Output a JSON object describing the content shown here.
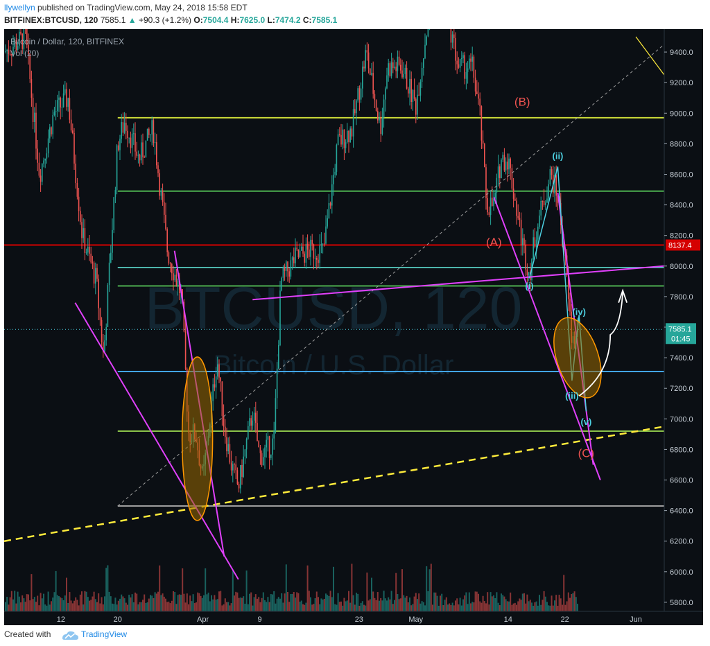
{
  "header": {
    "username": "llywellyn",
    "published_text": "published on TradingView.com, May 24, 2018 15:58 EDT",
    "symbol": "BITFINEX:BTCUSD, 120",
    "last": "7585.1",
    "change_arrow": "▲",
    "change": "+90.3 (+1.2%)",
    "open_label": "O:",
    "open": "7504.4",
    "high_label": "H:",
    "high": "7625.0",
    "low_label": "L:",
    "low": "7474.2",
    "close_label": "C:",
    "close": "7585.1"
  },
  "legend": {
    "title": "Bitcoin / Dollar, 120, BITFINEX",
    "vol": "Vol (20)"
  },
  "watermark": {
    "symbol": "BTCUSD, 120",
    "name": "Bitcoin / U.S. Dollar"
  },
  "footer": {
    "created_with": "Created with",
    "brand": "TradingView"
  },
  "colors": {
    "background": "#0b0f14",
    "up_candle": "#26a69a",
    "down_candle": "#ef5350",
    "magenta": "#e040fb",
    "yellow_dash": "#ffeb3b",
    "green_level": "#4caf50",
    "teal_level": "#4db6ac",
    "red_level": "#d50000",
    "blue_level": "#42a5f5",
    "ellipse": "#9a6a00"
  },
  "chart_data": {
    "type": "candlestick",
    "title": "Bitcoin / Dollar, 120, BITFINEX",
    "ylim": [
      5650,
      9550
    ],
    "y_axis_side": "right",
    "y_ticks": [
      5800,
      6000,
      6200,
      6400,
      6600,
      6800,
      7000,
      7200,
      7400,
      7600,
      7800,
      8000,
      8200,
      8400,
      8600,
      8800,
      9000,
      9200,
      9400
    ],
    "x_ticks": [
      {
        "label": "12",
        "date": "2018-03-12"
      },
      {
        "label": "20",
        "date": "2018-03-20"
      },
      {
        "label": "Apr",
        "date": "2018-04-01"
      },
      {
        "label": "9",
        "date": "2018-04-09"
      },
      {
        "label": "23",
        "date": "2018-04-23"
      },
      {
        "label": "May",
        "date": "2018-05-01"
      },
      {
        "label": "14",
        "date": "2018-05-14"
      },
      {
        "label": "22",
        "date": "2018-05-22"
      },
      {
        "label": "Jun",
        "date": "2018-06-01"
      }
    ],
    "xlim": [
      "2018-03-04",
      "2018-06-05"
    ],
    "price_path": [
      [
        "2018-03-04",
        9400
      ],
      [
        "2018-03-07",
        9500
      ],
      [
        "2018-03-09",
        8600
      ],
      [
        "2018-03-11",
        9000
      ],
      [
        "2018-03-13",
        9100
      ],
      [
        "2018-03-15",
        8200
      ],
      [
        "2018-03-17",
        7900
      ],
      [
        "2018-03-18",
        7400
      ],
      [
        "2018-03-20",
        8800
      ],
      [
        "2018-03-21",
        8950
      ],
      [
        "2018-03-23",
        8700
      ],
      [
        "2018-03-25",
        8900
      ],
      [
        "2018-03-27",
        8100
      ],
      [
        "2018-03-29",
        7800
      ],
      [
        "2018-03-30",
        6900
      ],
      [
        "2018-03-31",
        6900
      ],
      [
        "2018-04-01",
        6600
      ],
      [
        "2018-04-02",
        7000
      ],
      [
        "2018-04-03",
        7400
      ],
      [
        "2018-04-04",
        6950
      ],
      [
        "2018-04-05",
        6700
      ],
      [
        "2018-04-06",
        6550
      ],
      [
        "2018-04-07",
        6800
      ],
      [
        "2018-04-08",
        7050
      ],
      [
        "2018-04-09",
        6750
      ],
      [
        "2018-04-11",
        6850
      ],
      [
        "2018-04-12",
        7900
      ],
      [
        "2018-04-14",
        8050
      ],
      [
        "2018-04-16",
        8100
      ],
      [
        "2018-04-18",
        8100
      ],
      [
        "2018-04-20",
        8800
      ],
      [
        "2018-04-22",
        8900
      ],
      [
        "2018-04-24",
        9400
      ],
      [
        "2018-04-26",
        8900
      ],
      [
        "2018-04-27",
        9300
      ],
      [
        "2018-04-29",
        9300
      ],
      [
        "2018-05-01",
        9050
      ],
      [
        "2018-05-03",
        9700
      ],
      [
        "2018-05-05",
        9750
      ],
      [
        "2018-05-07",
        9300
      ],
      [
        "2018-05-09",
        9300
      ],
      [
        "2018-05-10",
        9000
      ],
      [
        "2018-05-11",
        8400
      ],
      [
        "2018-05-12",
        8400
      ],
      [
        "2018-05-13",
        8700
      ],
      [
        "2018-05-14",
        8700
      ],
      [
        "2018-05-16",
        8150
      ],
      [
        "2018-05-17",
        7950
      ],
      [
        "2018-05-18",
        8250
      ],
      [
        "2018-05-20",
        8600
      ],
      [
        "2018-05-21",
        8450
      ],
      [
        "2018-05-22",
        8050
      ],
      [
        "2018-05-23",
        7500
      ],
      [
        "2018-05-24",
        7585
      ]
    ],
    "horizontal_levels": [
      {
        "price": 8970,
        "color": "#cddc39"
      },
      {
        "price": 8490,
        "color": "#4caf50"
      },
      {
        "price": 8137.4,
        "color": "#d50000",
        "label": "8137.4"
      },
      {
        "price": 7990,
        "color": "#4db6ac"
      },
      {
        "price": 7870,
        "color": "#4caf50"
      },
      {
        "price": 7310,
        "color": "#42a5f5"
      },
      {
        "price": 6920,
        "color": "#8bc34a"
      },
      {
        "price": 6430,
        "color": "#9e9e9e"
      }
    ],
    "last_price": {
      "value": "7585.1",
      "countdown": "01:45"
    },
    "wave_labels": [
      {
        "text": "(B)",
        "date": "2018-05-16",
        "price": 9050,
        "color": "#ef5350"
      },
      {
        "text": "(A)",
        "date": "2018-05-12",
        "price": 8130,
        "color": "#ef5350"
      },
      {
        "text": "(C)",
        "date": "2018-05-25",
        "price": 6750,
        "color": "#ef5350"
      },
      {
        "text": "(ii)",
        "date": "2018-05-21",
        "price": 8700,
        "color": "#4dd0e1"
      },
      {
        "text": "(i)",
        "date": "2018-05-17",
        "price": 7850,
        "color": "#4dd0e1"
      },
      {
        "text": "(iv)",
        "date": "2018-05-24",
        "price": 7680,
        "color": "#4dd0e1"
      },
      {
        "text": "(iii)",
        "date": "2018-05-23",
        "price": 7130,
        "color": "#4dd0e1"
      },
      {
        "text": "(v)",
        "date": "2018-05-25",
        "price": 6960,
        "color": "#4dd0e1"
      }
    ],
    "volume_note": "volume histogram along bottom (Vol 20)"
  }
}
